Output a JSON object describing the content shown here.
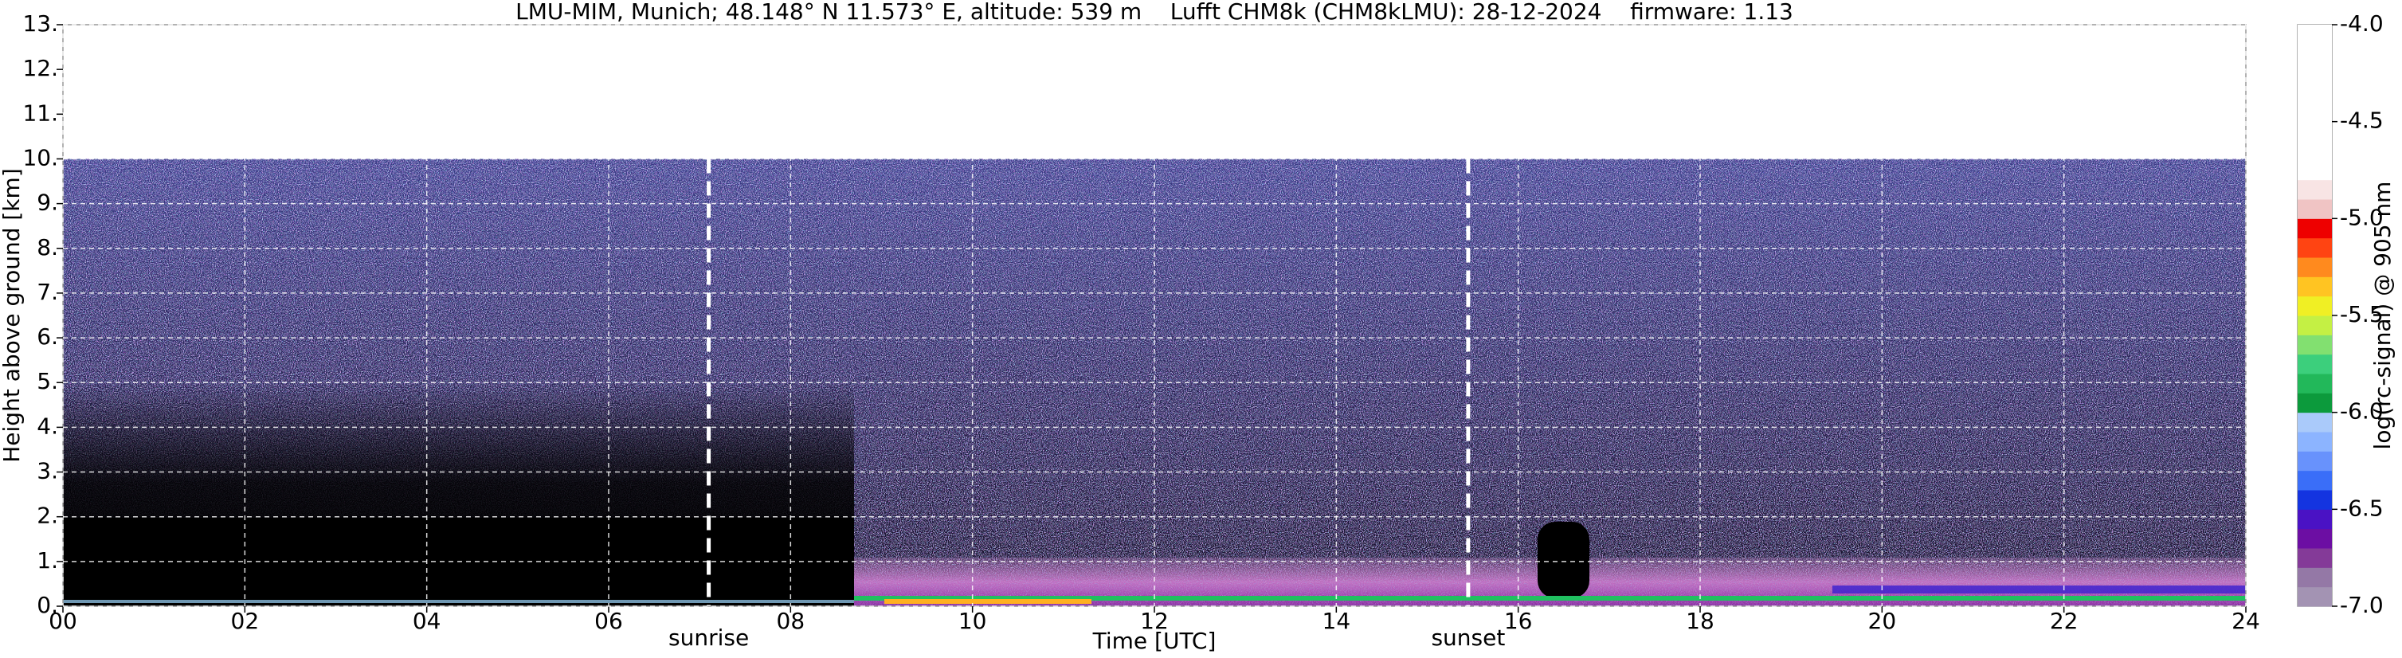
{
  "chart_data": {
    "type": "ceilometer",
    "title": "LMU-MIM, Munich; 48.148° N 11.573° E, altitude: 539 m    Lufft CHM8k (CHM8kLMU): 28-12-2024    firmware: 1.13",
    "xlabel": "Time [UTC]",
    "ylabel": "Height above ground [km]",
    "xlim": [
      0,
      24
    ],
    "xticks": [
      {
        "value": 0,
        "label": "00"
      },
      {
        "value": 2,
        "label": "02"
      },
      {
        "value": 4,
        "label": "04"
      },
      {
        "value": 6,
        "label": "06"
      },
      {
        "value": 8,
        "label": "08"
      },
      10,
      12,
      14,
      16,
      18,
      20,
      22,
      24
    ],
    "ylim": [
      0,
      13
    ],
    "yticks": [
      {
        "value": 0,
        "label": "0."
      },
      {
        "value": 1,
        "label": "1."
      },
      {
        "value": 2,
        "label": "2."
      },
      {
        "value": 3,
        "label": "3."
      },
      {
        "value": 4,
        "label": "4."
      },
      {
        "value": 5,
        "label": "5."
      },
      {
        "value": 6,
        "label": "6."
      },
      {
        "value": 7,
        "label": "7."
      },
      {
        "value": 8,
        "label": "8."
      },
      {
        "value": 9,
        "label": "9."
      },
      {
        "value": 10,
        "label": "10."
      },
      {
        "value": 11,
        "label": "11."
      },
      {
        "value": 12,
        "label": "12."
      },
      {
        "value": 13,
        "label": "13."
      }
    ],
    "grid": true,
    "annotations": [
      {
        "text": "sunrise",
        "x": 7.1
      },
      {
        "text": "sunset",
        "x": 15.45
      }
    ],
    "colorbar": {
      "label": "log(rc-signal) @ 905 nm",
      "clim": [
        -7,
        -4
      ],
      "ticks": [
        {
          "value": -7,
          "label": "-7.0"
        },
        {
          "value": -6.5,
          "label": "-6.5"
        },
        {
          "value": -6,
          "label": "-6.0"
        },
        {
          "value": -5.5,
          "label": "-5.5"
        },
        {
          "value": -5,
          "label": "-5.0"
        },
        {
          "value": -4.5,
          "label": "-4.5"
        },
        {
          "value": -4,
          "label": "-4.0"
        }
      ],
      "colors": [
        "#a393b3",
        "#9478a6",
        "#843a98",
        "#6c0ea3",
        "#4a12c4",
        "#1434e0",
        "#3a6ef8",
        "#6892fc",
        "#8cb4ff",
        "#aacafa",
        "#0c9a3c",
        "#22b85a",
        "#3ccf7c",
        "#82e070",
        "#c4f044",
        "#f0ef24",
        "#ffc422",
        "#ff8a1e",
        "#ff4412",
        "#ee0000",
        "#f0c4c4",
        "#f8e4e4",
        "#ffffff",
        "#ffffff",
        "#ffffff",
        "#ffffff",
        "#ffffff",
        "#ffffff",
        "#ffffff",
        "#ffffff"
      ]
    }
  }
}
